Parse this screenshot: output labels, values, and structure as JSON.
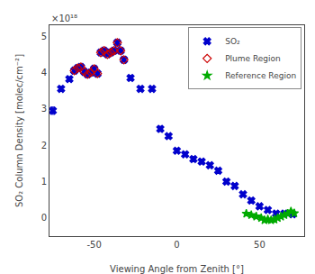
{
  "chart_data": {
    "type": "scatter",
    "xlabel": "Viewing Angle from Zenith [°]",
    "ylabel": "SO₂ Column Density [molec/cm⁻²]",
    "annotation": "×10¹⁸",
    "xlim": [
      -77,
      77
    ],
    "ylim": [
      -0.5,
      5.3
    ],
    "xticks": [
      -50,
      0,
      50
    ],
    "yticks": [
      0,
      1,
      2,
      3,
      4,
      5
    ],
    "grid": false,
    "legend": "upper right",
    "series": [
      {
        "name": "SO₂",
        "color": "#0000CC",
        "marker": "x",
        "x": [
          -75,
          -70,
          -65,
          -62,
          -60,
          -58,
          -56,
          -54,
          -52,
          -50,
          -48,
          -46,
          -44,
          -42,
          -40,
          -38,
          -36,
          -34,
          -32,
          -28,
          -22,
          -15,
          -10,
          -5,
          0,
          5,
          10,
          15,
          20,
          25,
          30,
          35,
          40,
          45,
          50,
          55,
          60,
          65,
          70
        ],
        "values": [
          2.95,
          3.55,
          3.82,
          4.05,
          4.12,
          4.15,
          4.02,
          3.95,
          4.0,
          4.1,
          3.97,
          4.55,
          4.6,
          4.5,
          4.55,
          4.6,
          4.82,
          4.6,
          4.35,
          3.85,
          3.55,
          3.55,
          2.45,
          2.25,
          1.85,
          1.75,
          1.62,
          1.55,
          1.45,
          1.3,
          1.0,
          0.88,
          0.65,
          0.48,
          0.32,
          0.22,
          0.12,
          0.12,
          0.1
        ],
        "errors": [
          0.1,
          0.07,
          0.06,
          0.06,
          0.06,
          0.06,
          0.06,
          0.06,
          0.06,
          0.06,
          0.06,
          0.06,
          0.06,
          0.06,
          0.06,
          0.06,
          0.06,
          0.06,
          0.06,
          0.06,
          0.06,
          0.06,
          0.07,
          0.06,
          0.06,
          0.06,
          0.06,
          0.06,
          0.06,
          0.06,
          0.05,
          0.05,
          0.05,
          0.05,
          0.04,
          0.04,
          0.04,
          0.04,
          0.04
        ]
      },
      {
        "name": "Plume Region",
        "color": "#CC0000",
        "marker": "diamond-open",
        "x": [
          -62,
          -60,
          -58,
          -56,
          -54,
          -52,
          -50,
          -48,
          -46,
          -44,
          -42,
          -40,
          -38,
          -36,
          -34,
          -32
        ],
        "values": [
          4.05,
          4.12,
          4.15,
          4.02,
          3.95,
          4.0,
          4.1,
          3.97,
          4.55,
          4.6,
          4.5,
          4.55,
          4.6,
          4.82,
          4.6,
          4.35
        ]
      },
      {
        "name": "Reference Region",
        "color": "#00AA00",
        "marker": "star",
        "x": [
          42,
          45,
          48,
          51,
          53,
          55,
          57,
          59,
          61,
          63,
          65,
          67,
          69,
          71
        ],
        "values": [
          0.12,
          0.08,
          0.04,
          0.0,
          -0.06,
          -0.04,
          -0.06,
          -0.04,
          0.0,
          0.04,
          0.08,
          0.12,
          0.18,
          0.13
        ]
      }
    ]
  }
}
